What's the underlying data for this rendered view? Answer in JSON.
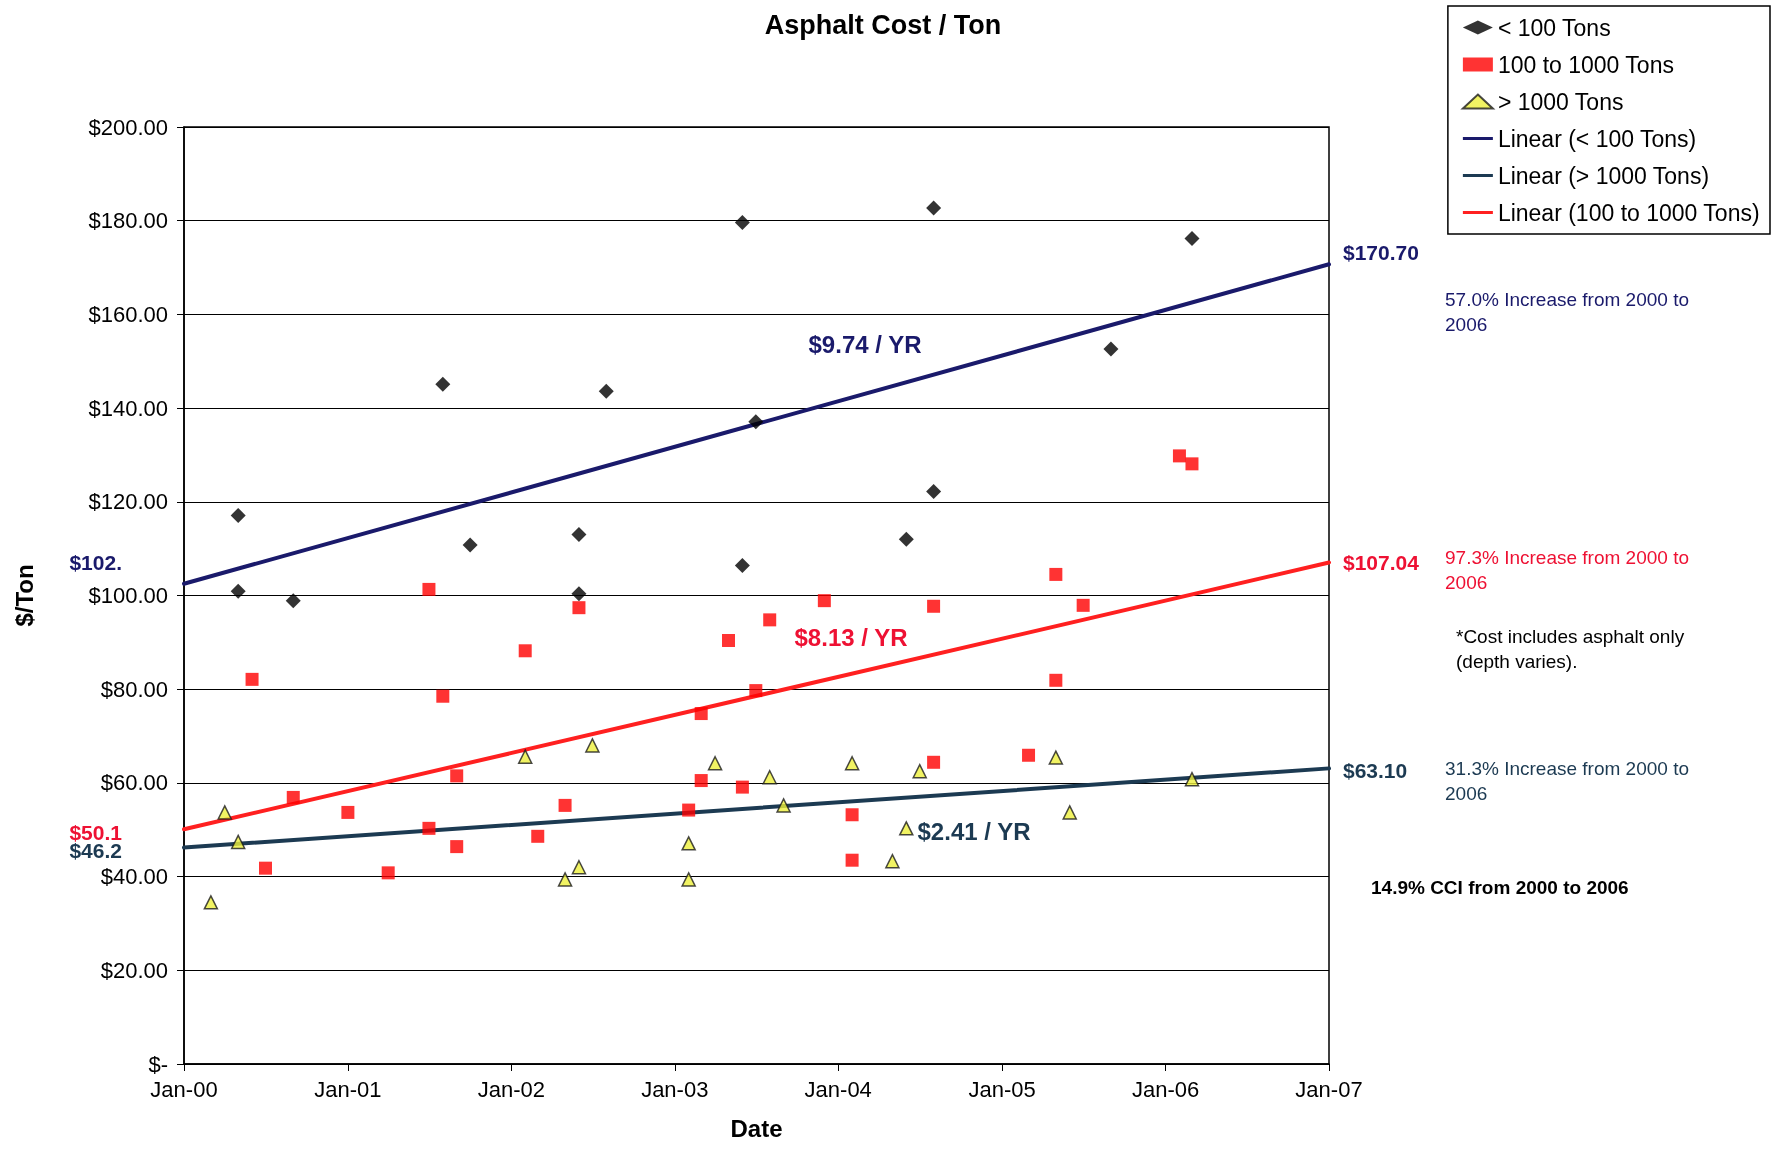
{
  "chart_data": {
    "type": "scatter",
    "title": "Asphalt Cost / Ton",
    "xlabel": "Date",
    "ylabel": "$/Ton",
    "xlim": [
      "2000-01",
      "2007-01"
    ],
    "xticks": [
      {
        "value": "2000-01",
        "label": "Jan-00"
      },
      {
        "value": "2001-01",
        "label": "Jan-01"
      },
      {
        "value": "2002-01",
        "label": "Jan-02"
      },
      {
        "value": "2003-01",
        "label": "Jan-03"
      },
      {
        "value": "2004-01",
        "label": "Jan-04"
      },
      {
        "value": "2005-01",
        "label": "Jan-05"
      },
      {
        "value": "2006-01",
        "label": "Jan-06"
      },
      {
        "value": "2007-01",
        "label": "Jan-07"
      }
    ],
    "ylim": [
      0,
      200
    ],
    "yticks": [
      {
        "value": 0,
        "label": "$-"
      },
      {
        "value": 20,
        "label": "$20.00"
      },
      {
        "value": 40,
        "label": "$40.00"
      },
      {
        "value": 60,
        "label": "$60.00"
      },
      {
        "value": 80,
        "label": "$80.00"
      },
      {
        "value": 100,
        "label": "$100.00"
      },
      {
        "value": 120,
        "label": "$120.00"
      },
      {
        "value": 140,
        "label": "$140.00"
      },
      {
        "value": 160,
        "label": "$160.00"
      },
      {
        "value": 180,
        "label": "$180.00"
      },
      {
        "value": 200,
        "label": "$200.00"
      }
    ],
    "grid": "y",
    "legend": "top right",
    "series": [
      {
        "name": "< 100 Tons",
        "type": "scatter",
        "marker": "diamond",
        "color": "#000000",
        "x": [
          "2000-05",
          "2000-05",
          "2000-09",
          "2001-08",
          "2001-10",
          "2002-06",
          "2002-06",
          "2002-08",
          "2003-06",
          "2003-07",
          "2003-06",
          "2004-06",
          "2004-08",
          "2004-08",
          "2005-09",
          "2006-03"
        ],
        "values": [
          117.1,
          100.9,
          98.9,
          145.1,
          110.8,
          113.0,
          100.4,
          143.6,
          179.6,
          137.1,
          106.4,
          112.0,
          182.7,
          122.2,
          152.6,
          176.2
        ]
      },
      {
        "name": "100 to 1000 Tons",
        "type": "scatter",
        "marker": "square",
        "color": "#ff0000",
        "x": [
          "2000-06",
          "2000-07",
          "2000-09",
          "2001-01",
          "2001-04",
          "2001-07",
          "2001-07",
          "2001-08",
          "2001-09",
          "2001-09",
          "2002-02",
          "2002-03",
          "2002-05",
          "2002-06",
          "2003-02",
          "2003-03",
          "2003-03",
          "2003-05",
          "2003-06",
          "2003-07",
          "2003-08",
          "2003-12",
          "2004-02",
          "2004-02",
          "2004-08",
          "2004-08",
          "2005-03",
          "2005-05",
          "2005-05",
          "2005-07",
          "2006-02",
          "2006-03"
        ],
        "values": [
          82.1,
          41.8,
          56.9,
          53.7,
          40.8,
          101.3,
          50.3,
          78.5,
          61.5,
          46.4,
          88.2,
          48.6,
          55.2,
          97.4,
          54.2,
          74.8,
          60.5,
          90.4,
          59.1,
          79.7,
          94.8,
          98.9,
          53.2,
          43.5,
          97.7,
          64.4,
          65.9,
          104.5,
          81.9,
          97.9,
          129.8,
          128.1
        ]
      },
      {
        "name": "> 1000 Tons",
        "type": "scatter",
        "marker": "triangle",
        "color": "#eef03c",
        "x": [
          "2000-03",
          "2000-04",
          "2000-05",
          "2002-02",
          "2002-05",
          "2002-06",
          "2002-07",
          "2003-02",
          "2003-02",
          "2003-04",
          "2003-08",
          "2003-09",
          "2004-02",
          "2004-05",
          "2004-06",
          "2004-07",
          "2005-05",
          "2005-06",
          "2006-03"
        ],
        "values": [
          34.5,
          53.7,
          47.4,
          65.6,
          39.4,
          42.0,
          68.0,
          47.1,
          39.4,
          64.2,
          61.2,
          55.2,
          64.2,
          43.3,
          50.3,
          62.5,
          65.4,
          53.7,
          60.8
        ]
      },
      {
        "name": "Linear (< 100 Tons)",
        "type": "line",
        "marker": "none",
        "line_style": "solid",
        "color": "#1a1a6b",
        "x": [
          "2000-01",
          "2007-01"
        ],
        "values": [
          102.5,
          170.7
        ]
      },
      {
        "name": "Linear (> 1000 Tons)",
        "type": "line",
        "marker": "none",
        "line_style": "solid",
        "color": "#1c3a52",
        "x": [
          "2000-01",
          "2007-01"
        ],
        "values": [
          46.2,
          63.1
        ]
      },
      {
        "name": "Linear (100 to 1000 Tons)",
        "type": "line",
        "marker": "none",
        "line_style": "solid",
        "color": "#ff2020",
        "x": [
          "2000-01",
          "2007-01"
        ],
        "values": [
          50.1,
          107.04
        ]
      }
    ],
    "annotations": [
      "$102.",
      "$50.1",
      "$46.2",
      "$9.74 / YR",
      "$8.13 / YR",
      "$2.41 / YR",
      {
        "text": "$170.70",
        "x": "2007-01",
        "y": 170.7
      },
      {
        "text": "$107.04",
        "x": "2007-01",
        "y": 107.04
      },
      {
        "text": "$63.10",
        "x": "2007-01",
        "y": 63.1
      },
      "57.0% Increase from 2000 to 2006",
      "97.3% Increase from 2000 to 2006",
      "31.3% Increase from 2000 to 2006",
      "*Cost includes asphalt only (depth varies).",
      "14.9% CCI from 2000 to 2006"
    ]
  }
}
